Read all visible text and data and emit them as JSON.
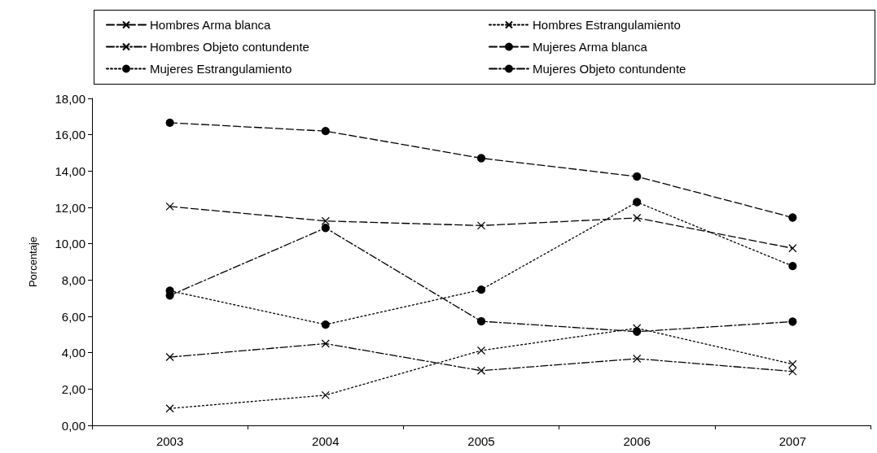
{
  "chart_data": {
    "type": "line",
    "ylabel": "Porcentaje",
    "categories": [
      "2003",
      "2004",
      "2005",
      "2006",
      "2007"
    ],
    "series": [
      {
        "name": "Hombres Arma blanca",
        "color": "#000000",
        "marker": "cross",
        "line_style": "dashed",
        "values": [
          12.05,
          11.25,
          11.0,
          11.42,
          9.75
        ]
      },
      {
        "name": "Hombres Estrangulamiento",
        "color": "#000000",
        "marker": "cross",
        "line_style": "dotted",
        "values": [
          0.93,
          1.66,
          4.12,
          5.35,
          3.37
        ]
      },
      {
        "name": "Hombres Objeto contundente",
        "color": "#000000",
        "marker": "cross",
        "line_style": "dashdot",
        "values": [
          3.76,
          4.5,
          3.01,
          3.67,
          2.97
        ]
      },
      {
        "name": "Mujeres Arma blanca",
        "color": "#000000",
        "marker": "circle",
        "line_style": "dashed",
        "values": [
          16.66,
          16.2,
          14.71,
          13.7,
          11.44
        ]
      },
      {
        "name": "Mujeres Estrangulamiento",
        "color": "#000000",
        "marker": "circle",
        "line_style": "dotted",
        "values": [
          7.41,
          5.55,
          7.47,
          12.29,
          8.77
        ]
      },
      {
        "name": "Mujeres Objeto contundente",
        "color": "#000000",
        "marker": "circle",
        "line_style": "dashdot",
        "values": [
          7.15,
          10.87,
          5.73,
          5.16,
          5.71
        ]
      }
    ],
    "ylim": [
      0,
      18
    ],
    "yticks": [
      {
        "value": 0,
        "label": "0,00"
      },
      {
        "value": 2,
        "label": "2,00"
      },
      {
        "value": 4,
        "label": "4,00"
      },
      {
        "value": 6,
        "label": "6,00"
      },
      {
        "value": 8,
        "label": "8,00"
      },
      {
        "value": 10,
        "label": "10,00"
      },
      {
        "value": 12,
        "label": "12,00"
      },
      {
        "value": 14,
        "label": "14,00"
      },
      {
        "value": 16,
        "label": "16,00"
      },
      {
        "value": 18,
        "label": "18,00"
      }
    ],
    "grid": false,
    "legend": "top"
  }
}
